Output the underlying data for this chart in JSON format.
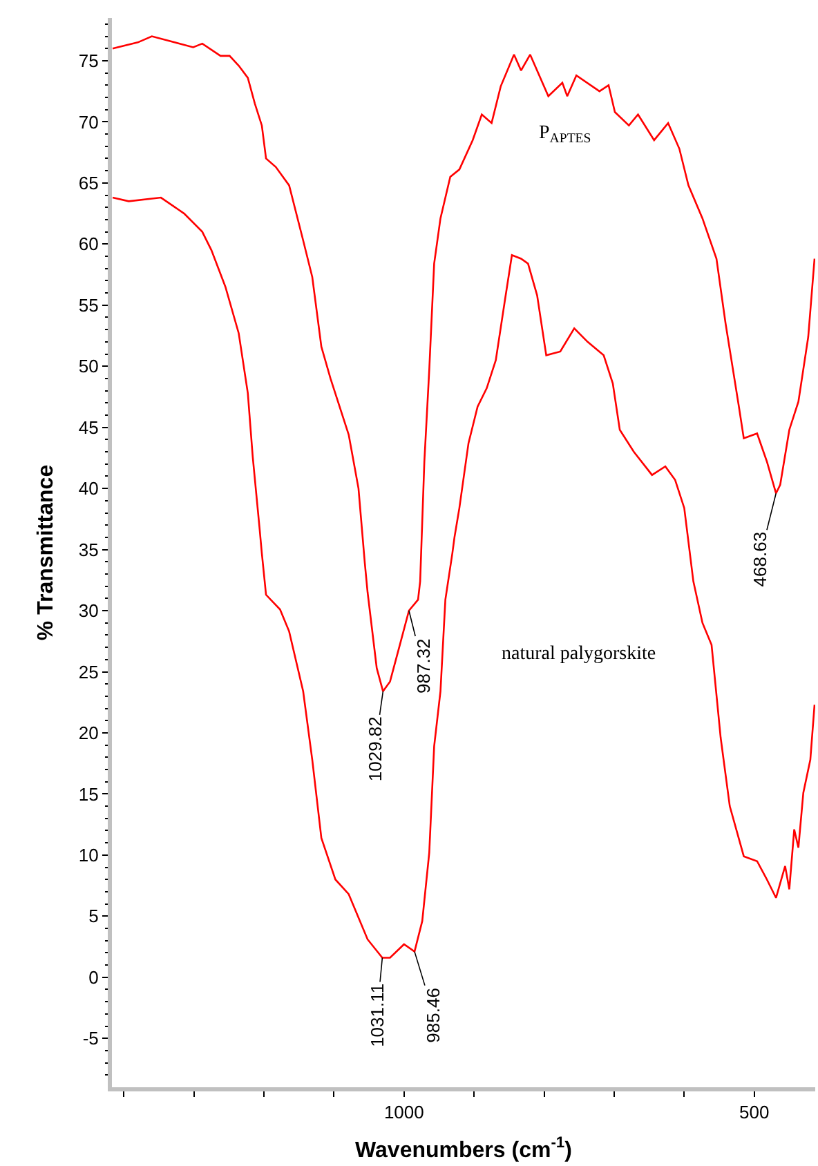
{
  "chart_data": {
    "type": "line",
    "xlabel": "Wavenumbers (cm$^{-1}$)",
    "ylabel": "% Transmittance",
    "xlim": [
      1417,
      413
    ],
    "ylim": [
      -9,
      78.5
    ],
    "xticks": [
      {
        "value": 1400,
        "label": null
      },
      {
        "value": 1300,
        "label": null
      },
      {
        "value": 1200,
        "label": null
      },
      {
        "value": 1100,
        "label": null
      },
      1000,
      {
        "value": 900,
        "label": null
      },
      {
        "value": 800,
        "label": null
      },
      {
        "value": 700,
        "label": null
      },
      {
        "value": 600,
        "label": null
      },
      500
    ],
    "yticks": [
      {
        "value": -8,
        "label": null
      },
      {
        "value": -7,
        "label": null
      },
      {
        "value": -6,
        "label": null
      },
      -5,
      {
        "value": -4,
        "label": null
      },
      {
        "value": -3,
        "label": null
      },
      {
        "value": -2,
        "label": null
      },
      {
        "value": -1,
        "label": null
      },
      0,
      {
        "value": 1,
        "label": null
      },
      {
        "value": 2,
        "label": null
      },
      {
        "value": 3,
        "label": null
      },
      {
        "value": 4,
        "label": null
      },
      5,
      {
        "value": 6,
        "label": null
      },
      {
        "value": 7,
        "label": null
      },
      {
        "value": 8,
        "label": null
      },
      {
        "value": 9,
        "label": null
      },
      10,
      {
        "value": 11,
        "label": null
      },
      {
        "value": 12,
        "label": null
      },
      {
        "value": 13,
        "label": null
      },
      {
        "value": 14,
        "label": null
      },
      15,
      {
        "value": 16,
        "label": null
      },
      {
        "value": 17,
        "label": null
      },
      {
        "value": 18,
        "label": null
      },
      {
        "value": 19,
        "label": null
      },
      20,
      {
        "value": 21,
        "label": null
      },
      {
        "value": 22,
        "label": null
      },
      {
        "value": 23,
        "label": null
      },
      {
        "value": 24,
        "label": null
      },
      25,
      {
        "value": 26,
        "label": null
      },
      {
        "value": 27,
        "label": null
      },
      {
        "value": 28,
        "label": null
      },
      {
        "value": 29,
        "label": null
      },
      30,
      {
        "value": 31,
        "label": null
      },
      {
        "value": 32,
        "label": null
      },
      {
        "value": 33,
        "label": null
      },
      {
        "value": 34,
        "label": null
      },
      35,
      {
        "value": 36,
        "label": null
      },
      {
        "value": 37,
        "label": null
      },
      {
        "value": 38,
        "label": null
      },
      {
        "value": 39,
        "label": null
      },
      40,
      {
        "value": 41,
        "label": null
      },
      {
        "value": 42,
        "label": null
      },
      {
        "value": 43,
        "label": null
      },
      {
        "value": 44,
        "label": null
      },
      45,
      {
        "value": 46,
        "label": null
      },
      {
        "value": 47,
        "label": null
      },
      {
        "value": 48,
        "label": null
      },
      {
        "value": 49,
        "label": null
      },
      50,
      {
        "value": 51,
        "label": null
      },
      {
        "value": 52,
        "label": null
      },
      {
        "value": 53,
        "label": null
      },
      {
        "value": 54,
        "label": null
      },
      55,
      {
        "value": 56,
        "label": null
      },
      {
        "value": 57,
        "label": null
      },
      {
        "value": 58,
        "label": null
      },
      {
        "value": 59,
        "label": null
      },
      60,
      {
        "value": 61,
        "label": null
      },
      {
        "value": 62,
        "label": null
      },
      {
        "value": 63,
        "label": null
      },
      {
        "value": 64,
        "label": null
      },
      65,
      {
        "value": 66,
        "label": null
      },
      {
        "value": 67,
        "label": null
      },
      {
        "value": 68,
        "label": null
      },
      {
        "value": 69,
        "label": null
      },
      70,
      {
        "value": 71,
        "label": null
      },
      {
        "value": 72,
        "label": null
      },
      {
        "value": 73,
        "label": null
      },
      {
        "value": 74,
        "label": null
      },
      75,
      {
        "value": 76,
        "label": null
      },
      {
        "value": 77,
        "label": null
      },
      {
        "value": 78,
        "label": null
      }
    ],
    "legend": false,
    "marker": "none",
    "line_style": "solid",
    "series": [
      {
        "name": "P$_{APTES}$",
        "color": "#ff0000",
        "x": [
          1416,
          1380,
          1360,
          1301,
          1288,
          1262,
          1249,
          1236,
          1223,
          1213,
          1203,
          1197,
          1183,
          1164,
          1144,
          1131,
          1118,
          1105,
          1079,
          1065,
          1056,
          1052,
          1039,
          1030,
          1020,
          1006,
          993,
          980,
          977,
          971,
          964,
          957,
          948,
          934,
          921,
          902,
          889,
          875,
          862,
          843,
          833,
          820,
          794,
          774,
          767,
          754,
          721,
          708,
          699,
          679,
          666,
          643,
          623,
          607,
          594,
          574,
          554,
          541,
          522,
          515,
          496,
          482,
          469,
          463,
          450,
          437,
          423,
          414
        ],
        "values": [
          76.0,
          76.5,
          77.0,
          76.1,
          76.4,
          75.4,
          75.4,
          74.6,
          73.6,
          71.5,
          69.7,
          67.0,
          66.3,
          64.8,
          60.3,
          57.3,
          51.6,
          49.0,
          44.4,
          40.0,
          33.9,
          31.5,
          25.3,
          23.4,
          24.2,
          27.2,
          30.0,
          30.9,
          32.4,
          42.2,
          49.7,
          58.4,
          62.1,
          65.5,
          66.1,
          68.5,
          70.6,
          69.9,
          72.9,
          75.5,
          74.2,
          75.5,
          72.1,
          73.2,
          72.1,
          73.8,
          72.5,
          73.0,
          70.8,
          69.7,
          70.6,
          68.5,
          69.9,
          67.8,
          64.8,
          62.1,
          58.8,
          53.5,
          46.7,
          44.1,
          44.5,
          42.2,
          39.6,
          40.3,
          44.8,
          47.1,
          52.4,
          58.8
        ]
      },
      {
        "name": "natural palygorskite",
        "color": "#ff0000",
        "x": [
          1416,
          1393,
          1347,
          1314,
          1288,
          1275,
          1255,
          1236,
          1223,
          1216,
          1206,
          1203,
          1197,
          1177,
          1164,
          1144,
          1131,
          1118,
          1098,
          1079,
          1052,
          1031,
          1020,
          1000,
          985,
          974,
          964,
          957,
          948,
          941,
          931,
          928,
          921,
          908,
          895,
          882,
          869,
          856,
          846,
          833,
          823,
          810,
          797,
          777,
          757,
          738,
          715,
          702,
          692,
          672,
          646,
          627,
          613,
          600,
          587,
          574,
          561,
          548,
          535,
          515,
          496,
          482,
          469,
          456,
          450,
          443,
          437,
          430,
          420,
          414
        ],
        "values": [
          63.8,
          63.5,
          63.8,
          62.5,
          61.0,
          59.5,
          56.5,
          52.7,
          47.8,
          42.6,
          36.6,
          34.7,
          31.3,
          30.1,
          28.3,
          23.4,
          17.8,
          11.4,
          8.0,
          6.8,
          3.1,
          1.6,
          1.6,
          2.7,
          2.1,
          4.6,
          10.2,
          18.9,
          23.4,
          30.9,
          34.7,
          36.0,
          38.4,
          43.7,
          46.7,
          48.2,
          50.5,
          55.4,
          59.1,
          58.8,
          58.4,
          55.8,
          50.9,
          51.2,
          53.1,
          52.0,
          50.9,
          48.6,
          44.8,
          43.0,
          41.1,
          41.8,
          40.7,
          38.4,
          32.4,
          29.0,
          27.2,
          19.6,
          14.0,
          9.9,
          9.5,
          8.0,
          6.5,
          9.1,
          7.2,
          12.1,
          10.6,
          15.1,
          17.8,
          22.3
        ]
      }
    ],
    "annotations": [
      {
        "text": "1029.82",
        "x": 1030,
        "y": 23.4
      },
      {
        "text": "987.32",
        "x": 993,
        "y": 30.0
      },
      {
        "text": "468.63",
        "x": 469,
        "y": 39.6
      },
      {
        "text": "1031.11",
        "x": 1031,
        "y": 1.6
      },
      {
        "text": "985.46",
        "x": 985,
        "y": 2.1
      }
    ]
  }
}
